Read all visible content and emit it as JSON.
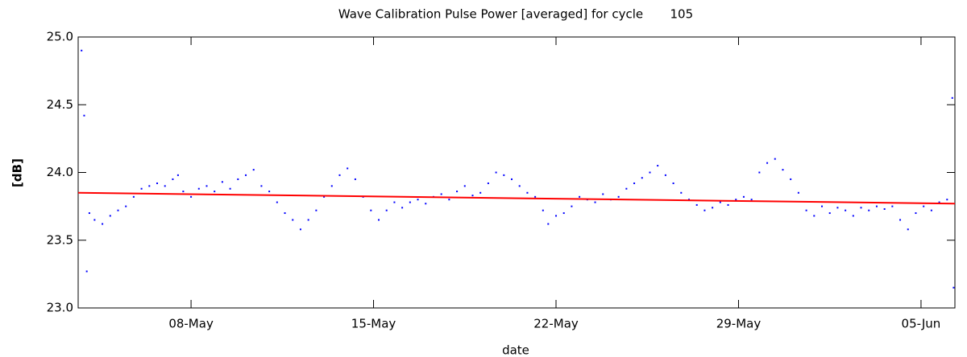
{
  "chart_data": {
    "type": "scatter",
    "title": "Wave Calibration Pulse Power [averaged] for cycle       105",
    "x_label": "date",
    "y_label": "[dB]",
    "xlim": [
      3.67,
      37.3
    ],
    "ylim": [
      23.0,
      25.0
    ],
    "xticks": [
      {
        "value": 8,
        "label": "08-May"
      },
      {
        "value": 15,
        "label": "15-May"
      },
      {
        "value": 22,
        "label": "22-May"
      },
      {
        "value": 29,
        "label": "29-May"
      },
      {
        "value": 36,
        "label": "05-Jun"
      }
    ],
    "yticks": [
      {
        "value": 23.0,
        "label": "23.0"
      },
      {
        "value": 23.5,
        "label": "23.5"
      },
      {
        "value": 24.0,
        "label": "24.0"
      },
      {
        "value": 24.5,
        "label": "24.5"
      },
      {
        "value": 25.0,
        "label": "25.0"
      }
    ],
    "series": [
      {
        "type": "scatter",
        "color": "#0000ff",
        "x": [
          3.8,
          3.9,
          4.0,
          4.1,
          4.3,
          4.6,
          4.9,
          5.2,
          5.5,
          5.8,
          6.1,
          6.4,
          6.7,
          7.0,
          7.3,
          7.5,
          7.7,
          8.0,
          8.3,
          8.6,
          8.9,
          9.2,
          9.5,
          9.8,
          10.1,
          10.4,
          10.7,
          11.0,
          11.3,
          11.6,
          11.9,
          12.2,
          12.5,
          12.8,
          13.1,
          13.4,
          13.7,
          14.0,
          14.3,
          14.6,
          14.9,
          15.2,
          15.5,
          15.8,
          16.1,
          16.4,
          16.7,
          17.0,
          17.3,
          17.6,
          17.9,
          18.2,
          18.5,
          18.8,
          19.1,
          19.4,
          19.7,
          20.0,
          20.3,
          20.6,
          20.9,
          21.2,
          21.5,
          21.7,
          22.0,
          22.3,
          22.6,
          22.9,
          23.2,
          23.5,
          23.8,
          24.1,
          24.4,
          24.7,
          25.0,
          25.3,
          25.6,
          25.9,
          26.2,
          26.5,
          26.8,
          27.1,
          27.4,
          27.7,
          28.0,
          28.3,
          28.6,
          28.9,
          29.2,
          29.5,
          29.8,
          30.1,
          30.4,
          30.7,
          31.0,
          31.3,
          31.6,
          31.9,
          32.2,
          32.5,
          32.8,
          33.1,
          33.4,
          33.7,
          34.0,
          34.3,
          34.6,
          34.9,
          35.2,
          35.5,
          35.8,
          36.1,
          36.4,
          36.7,
          37.0,
          37.2,
          37.25
        ],
        "values": [
          24.9,
          24.42,
          23.27,
          23.7,
          23.65,
          23.62,
          23.68,
          23.72,
          23.75,
          23.82,
          23.88,
          23.9,
          23.92,
          23.9,
          23.95,
          23.98,
          23.86,
          23.82,
          23.88,
          23.9,
          23.86,
          23.93,
          23.88,
          23.95,
          23.98,
          24.02,
          23.9,
          23.86,
          23.78,
          23.7,
          23.65,
          23.58,
          23.65,
          23.72,
          23.82,
          23.9,
          23.98,
          24.03,
          23.95,
          23.82,
          23.72,
          23.65,
          23.72,
          23.78,
          23.74,
          23.78,
          23.8,
          23.77,
          23.82,
          23.84,
          23.8,
          23.86,
          23.9,
          23.83,
          23.85,
          23.92,
          24.0,
          23.98,
          23.95,
          23.9,
          23.85,
          23.82,
          23.72,
          23.62,
          23.68,
          23.7,
          23.75,
          23.82,
          23.8,
          23.78,
          23.84,
          23.8,
          23.82,
          23.88,
          23.92,
          23.96,
          24.0,
          24.05,
          23.98,
          23.92,
          23.85,
          23.8,
          23.76,
          23.72,
          23.74,
          23.78,
          23.76,
          23.8,
          23.82,
          23.8,
          24.0,
          24.07,
          24.1,
          24.02,
          23.95,
          23.85,
          23.72,
          23.68,
          23.75,
          23.7,
          23.74,
          23.72,
          23.68,
          23.74,
          23.72,
          23.75,
          23.73,
          23.75,
          23.65,
          23.58,
          23.7,
          23.75,
          23.72,
          23.78,
          23.8,
          24.55,
          23.15
        ]
      },
      {
        "type": "line",
        "color": "#ff0000",
        "x": [
          3.67,
          37.3
        ],
        "values": [
          23.85,
          23.77
        ]
      }
    ]
  }
}
